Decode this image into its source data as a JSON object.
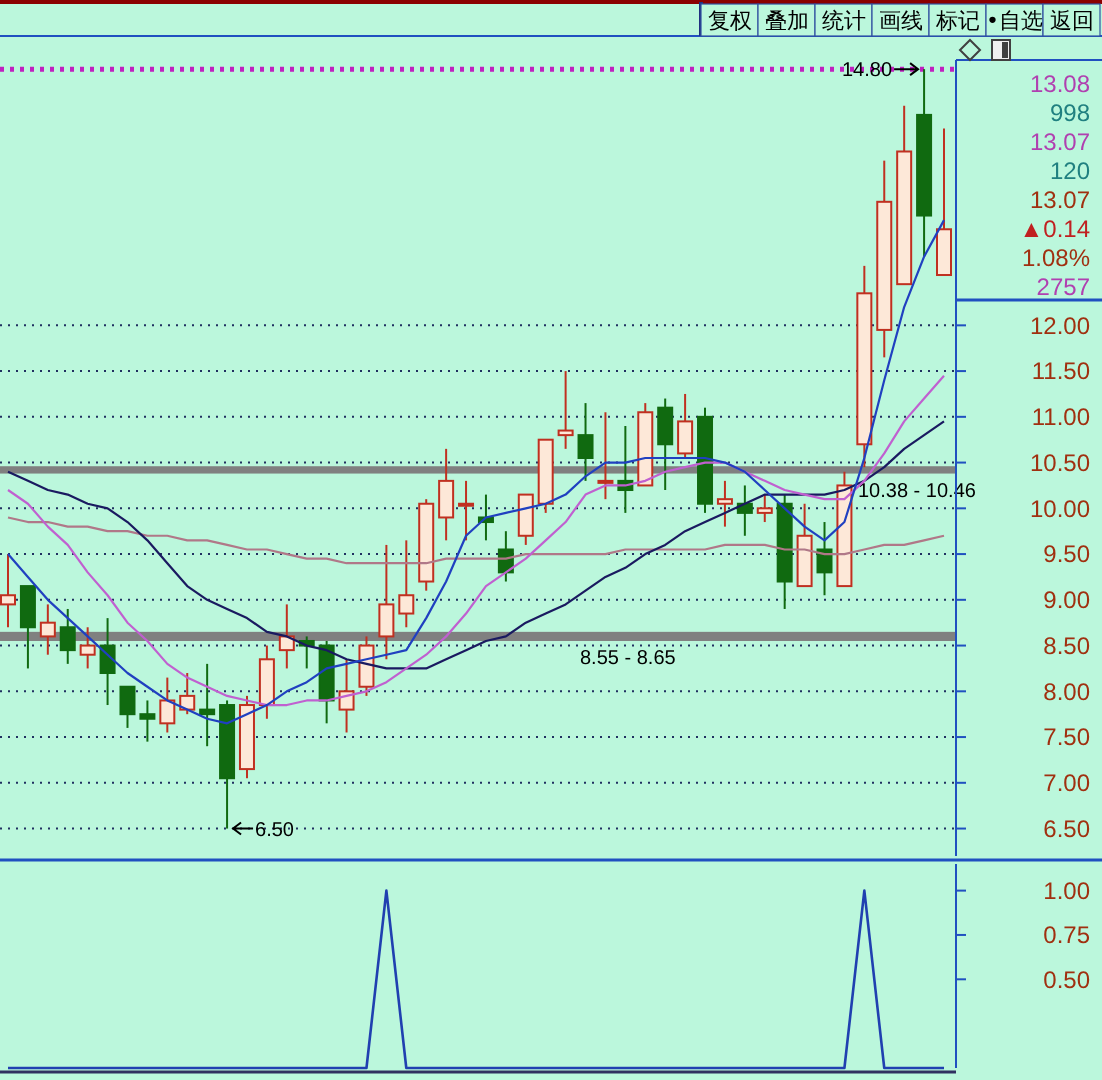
{
  "chart_data": [
    {
      "type": "other",
      "annotations": [
        "复权",
        "叠加",
        "统计",
        "画线",
        "标记",
        "•自选",
        "返回"
      ]
    },
    {
      "type": "candlestick",
      "categories": [
        null,
        null,
        null,
        null,
        null,
        null,
        null,
        null,
        null,
        null,
        null,
        null,
        null,
        null,
        null,
        null,
        null,
        null,
        null,
        null,
        null,
        null,
        null,
        null,
        null,
        null,
        null,
        null,
        null,
        null,
        null,
        null,
        null,
        null,
        null,
        null,
        null,
        null,
        null,
        null,
        null,
        null,
        null,
        null,
        null,
        null,
        null,
        null
      ],
      "ohlc": [
        [
          8.95,
          9.5,
          8.7,
          9.05
        ],
        [
          9.15,
          9.15,
          8.25,
          8.7
        ],
        [
          8.6,
          8.95,
          8.4,
          8.75
        ],
        [
          8.7,
          8.9,
          8.3,
          8.45
        ],
        [
          8.4,
          8.7,
          8.25,
          8.5
        ],
        [
          8.5,
          8.8,
          7.85,
          8.2
        ],
        [
          8.05,
          8.05,
          7.6,
          7.75
        ],
        [
          7.75,
          7.9,
          7.45,
          7.7
        ],
        [
          7.65,
          8.15,
          7.55,
          7.9
        ],
        [
          7.8,
          8.2,
          7.75,
          7.95
        ],
        [
          7.8,
          8.3,
          7.4,
          7.75
        ],
        [
          7.85,
          7.9,
          6.5,
          7.05
        ],
        [
          7.15,
          7.95,
          7.05,
          7.85
        ],
        [
          7.85,
          8.5,
          7.7,
          8.35
        ],
        [
          8.45,
          8.95,
          8.25,
          8.6
        ],
        [
          8.55,
          8.6,
          8.25,
          8.5
        ],
        [
          8.5,
          8.55,
          7.65,
          7.9
        ],
        [
          7.8,
          8.35,
          7.55,
          8.0
        ],
        [
          8.05,
          8.6,
          7.95,
          8.5
        ],
        [
          8.6,
          9.6,
          8.35,
          8.95
        ],
        [
          8.85,
          9.65,
          8.7,
          9.05
        ],
        [
          9.2,
          10.1,
          9.1,
          10.05
        ],
        [
          9.9,
          10.65,
          9.65,
          10.3
        ],
        [
          10.05,
          10.3,
          9.65,
          10.05
        ],
        [
          9.9,
          10.15,
          9.65,
          9.85
        ],
        [
          9.55,
          9.75,
          9.2,
          9.3
        ],
        [
          9.7,
          10.15,
          9.6,
          10.15
        ],
        [
          10.05,
          10.75,
          9.95,
          10.75
        ],
        [
          10.8,
          11.5,
          10.65,
          10.85
        ],
        [
          10.8,
          11.15,
          10.3,
          10.55
        ],
        [
          10.3,
          11.05,
          10.1,
          10.3
        ],
        [
          10.3,
          10.9,
          9.95,
          10.2
        ],
        [
          10.25,
          11.15,
          10.25,
          11.05
        ],
        [
          11.1,
          11.2,
          10.2,
          10.7
        ],
        [
          10.6,
          11.25,
          10.55,
          10.95
        ],
        [
          11.0,
          11.1,
          9.95,
          10.05
        ],
        [
          10.05,
          10.3,
          9.8,
          10.1
        ],
        [
          10.05,
          10.25,
          9.7,
          9.95
        ],
        [
          9.95,
          10.15,
          9.85,
          10.0
        ],
        [
          10.05,
          10.15,
          8.9,
          9.2
        ],
        [
          9.15,
          10.05,
          9.15,
          9.7
        ],
        [
          9.55,
          9.85,
          9.05,
          9.3
        ],
        [
          9.15,
          10.4,
          9.15,
          10.25
        ],
        [
          10.7,
          12.65,
          10.45,
          12.35
        ],
        [
          11.95,
          13.8,
          11.65,
          13.35
        ],
        [
          12.45,
          14.4,
          12.45,
          13.9
        ],
        [
          14.3,
          14.8,
          12.75,
          13.2
        ],
        [
          12.55,
          14.15,
          12.55,
          13.05
        ]
      ],
      "series": [
        {
          "type": "line",
          "color": "#b07888",
          "values": [
            9.9,
            9.85,
            9.85,
            9.8,
            9.8,
            9.75,
            9.75,
            9.7,
            9.7,
            9.65,
            9.65,
            9.6,
            9.55,
            9.55,
            9.5,
            9.45,
            9.45,
            9.4,
            9.4,
            9.4,
            9.4,
            9.4,
            9.45,
            9.45,
            9.45,
            9.45,
            9.5,
            9.5,
            9.5,
            9.5,
            9.5,
            9.55,
            9.55,
            9.55,
            9.55,
            9.55,
            9.6,
            9.6,
            9.6,
            9.55,
            9.55,
            9.5,
            9.5,
            9.55,
            9.6,
            9.6,
            9.65,
            9.7
          ]
        },
        {
          "type": "line",
          "color": "#1a1a60",
          "values": [
            10.4,
            10.3,
            10.2,
            10.15,
            10.05,
            10.0,
            9.85,
            9.65,
            9.4,
            9.15,
            9.0,
            8.9,
            8.8,
            8.65,
            8.6,
            8.5,
            8.45,
            8.35,
            8.3,
            8.25,
            8.25,
            8.25,
            8.35,
            8.45,
            8.55,
            8.6,
            8.75,
            8.85,
            8.95,
            9.1,
            9.25,
            9.35,
            9.5,
            9.6,
            9.75,
            9.85,
            9.95,
            10.05,
            10.15,
            10.15,
            10.15,
            10.15,
            10.2,
            10.3,
            10.45,
            10.65,
            10.8,
            10.95
          ]
        },
        {
          "type": "line",
          "color": "#c060d0",
          "values": [
            10.2,
            10.05,
            9.8,
            9.6,
            9.3,
            9.05,
            8.75,
            8.55,
            8.3,
            8.15,
            8.05,
            7.95,
            7.9,
            7.85,
            7.85,
            7.9,
            7.9,
            7.95,
            8.0,
            8.1,
            8.25,
            8.4,
            8.6,
            8.85,
            9.15,
            9.3,
            9.45,
            9.65,
            9.85,
            10.15,
            10.25,
            10.25,
            10.3,
            10.4,
            10.45,
            10.5,
            10.5,
            10.4,
            10.3,
            10.2,
            10.15,
            10.1,
            10.1,
            10.3,
            10.6,
            10.95,
            11.2,
            11.45
          ]
        },
        {
          "type": "line",
          "color": "#2040c0",
          "values": [
            9.5,
            9.25,
            9.0,
            8.8,
            8.6,
            8.4,
            8.2,
            8.05,
            7.9,
            7.8,
            7.7,
            7.65,
            7.75,
            7.85,
            8.0,
            8.1,
            8.25,
            8.3,
            8.35,
            8.4,
            8.45,
            8.8,
            9.2,
            9.7,
            9.9,
            9.95,
            10.0,
            10.05,
            10.15,
            10.35,
            10.5,
            10.5,
            10.55,
            10.55,
            10.55,
            10.55,
            10.5,
            10.4,
            10.2,
            10.0,
            9.8,
            9.65,
            9.85,
            10.55,
            11.4,
            12.2,
            12.75,
            13.15
          ]
        }
      ],
      "ylim": [
        6.2,
        14.9
      ],
      "yticks": [
        {
          "value": 6.5,
          "label": "6.50"
        },
        {
          "value": 7,
          "label": "7.00"
        },
        {
          "value": 7.5,
          "label": "7.50"
        },
        {
          "value": 8,
          "label": "8.00"
        },
        {
          "value": 8.5,
          "label": "8.50"
        },
        {
          "value": 9,
          "label": "9.00"
        },
        {
          "value": 9.5,
          "label": "9.50"
        },
        {
          "value": 10,
          "label": "10.00"
        },
        {
          "value": 10.5,
          "label": "10.50"
        },
        {
          "value": 11,
          "label": "11.00"
        },
        {
          "value": 11.5,
          "label": "11.50"
        },
        {
          "value": 12,
          "label": "12.00"
        }
      ],
      "grid": "y",
      "bands": [
        {
          "axis": "y",
          "from": 8.55,
          "to": 8.65,
          "label": "8.55 - 8.65",
          "color": "#808080"
        },
        {
          "axis": "y",
          "from": 10.38,
          "to": 10.46,
          "label": "10.38 - 10.46",
          "color": "#808080"
        }
      ],
      "ref_lines": [
        {
          "axis": "y",
          "value": 14.8,
          "color": "#c020c0",
          "line_style": "dotted"
        }
      ],
      "annotations": [
        {
          "text": "14.80",
          "y": 14.8
        },
        "6.50"
      ]
    },
    {
      "type": "other",
      "annotations": [
        "13.08",
        "998",
        "13.07",
        "120",
        "13.07",
        "▲0.14",
        "1.08%",
        "2757"
      ]
    },
    {
      "type": "line",
      "categories": [
        null,
        null,
        null,
        null,
        null,
        null,
        null,
        null,
        null,
        null,
        null,
        null,
        null,
        null,
        null,
        null,
        null,
        null,
        null,
        null,
        null,
        null,
        null,
        null,
        null,
        null,
        null,
        null,
        null,
        null,
        null,
        null,
        null,
        null,
        null,
        null,
        null,
        null,
        null,
        null,
        null,
        null,
        null,
        null,
        null,
        null,
        null,
        null
      ],
      "color": "#2040b0",
      "values": [
        0,
        0,
        0,
        0,
        0,
        0,
        0,
        0,
        0,
        0,
        0,
        0,
        0,
        0,
        0,
        0,
        0,
        0,
        0,
        1,
        0,
        0,
        0,
        0,
        0,
        0,
        0,
        0,
        0,
        0,
        0,
        0,
        0,
        0,
        0,
        0,
        0,
        0,
        0,
        0,
        0,
        0,
        0,
        1,
        0,
        0,
        0,
        0
      ],
      "ylim": [
        0,
        1.15
      ],
      "yticks": [
        {
          "value": 0.5,
          "label": "0.50"
        },
        {
          "value": 0.75,
          "label": "0.75"
        },
        {
          "value": 1,
          "label": "1.00"
        }
      ]
    }
  ]
}
